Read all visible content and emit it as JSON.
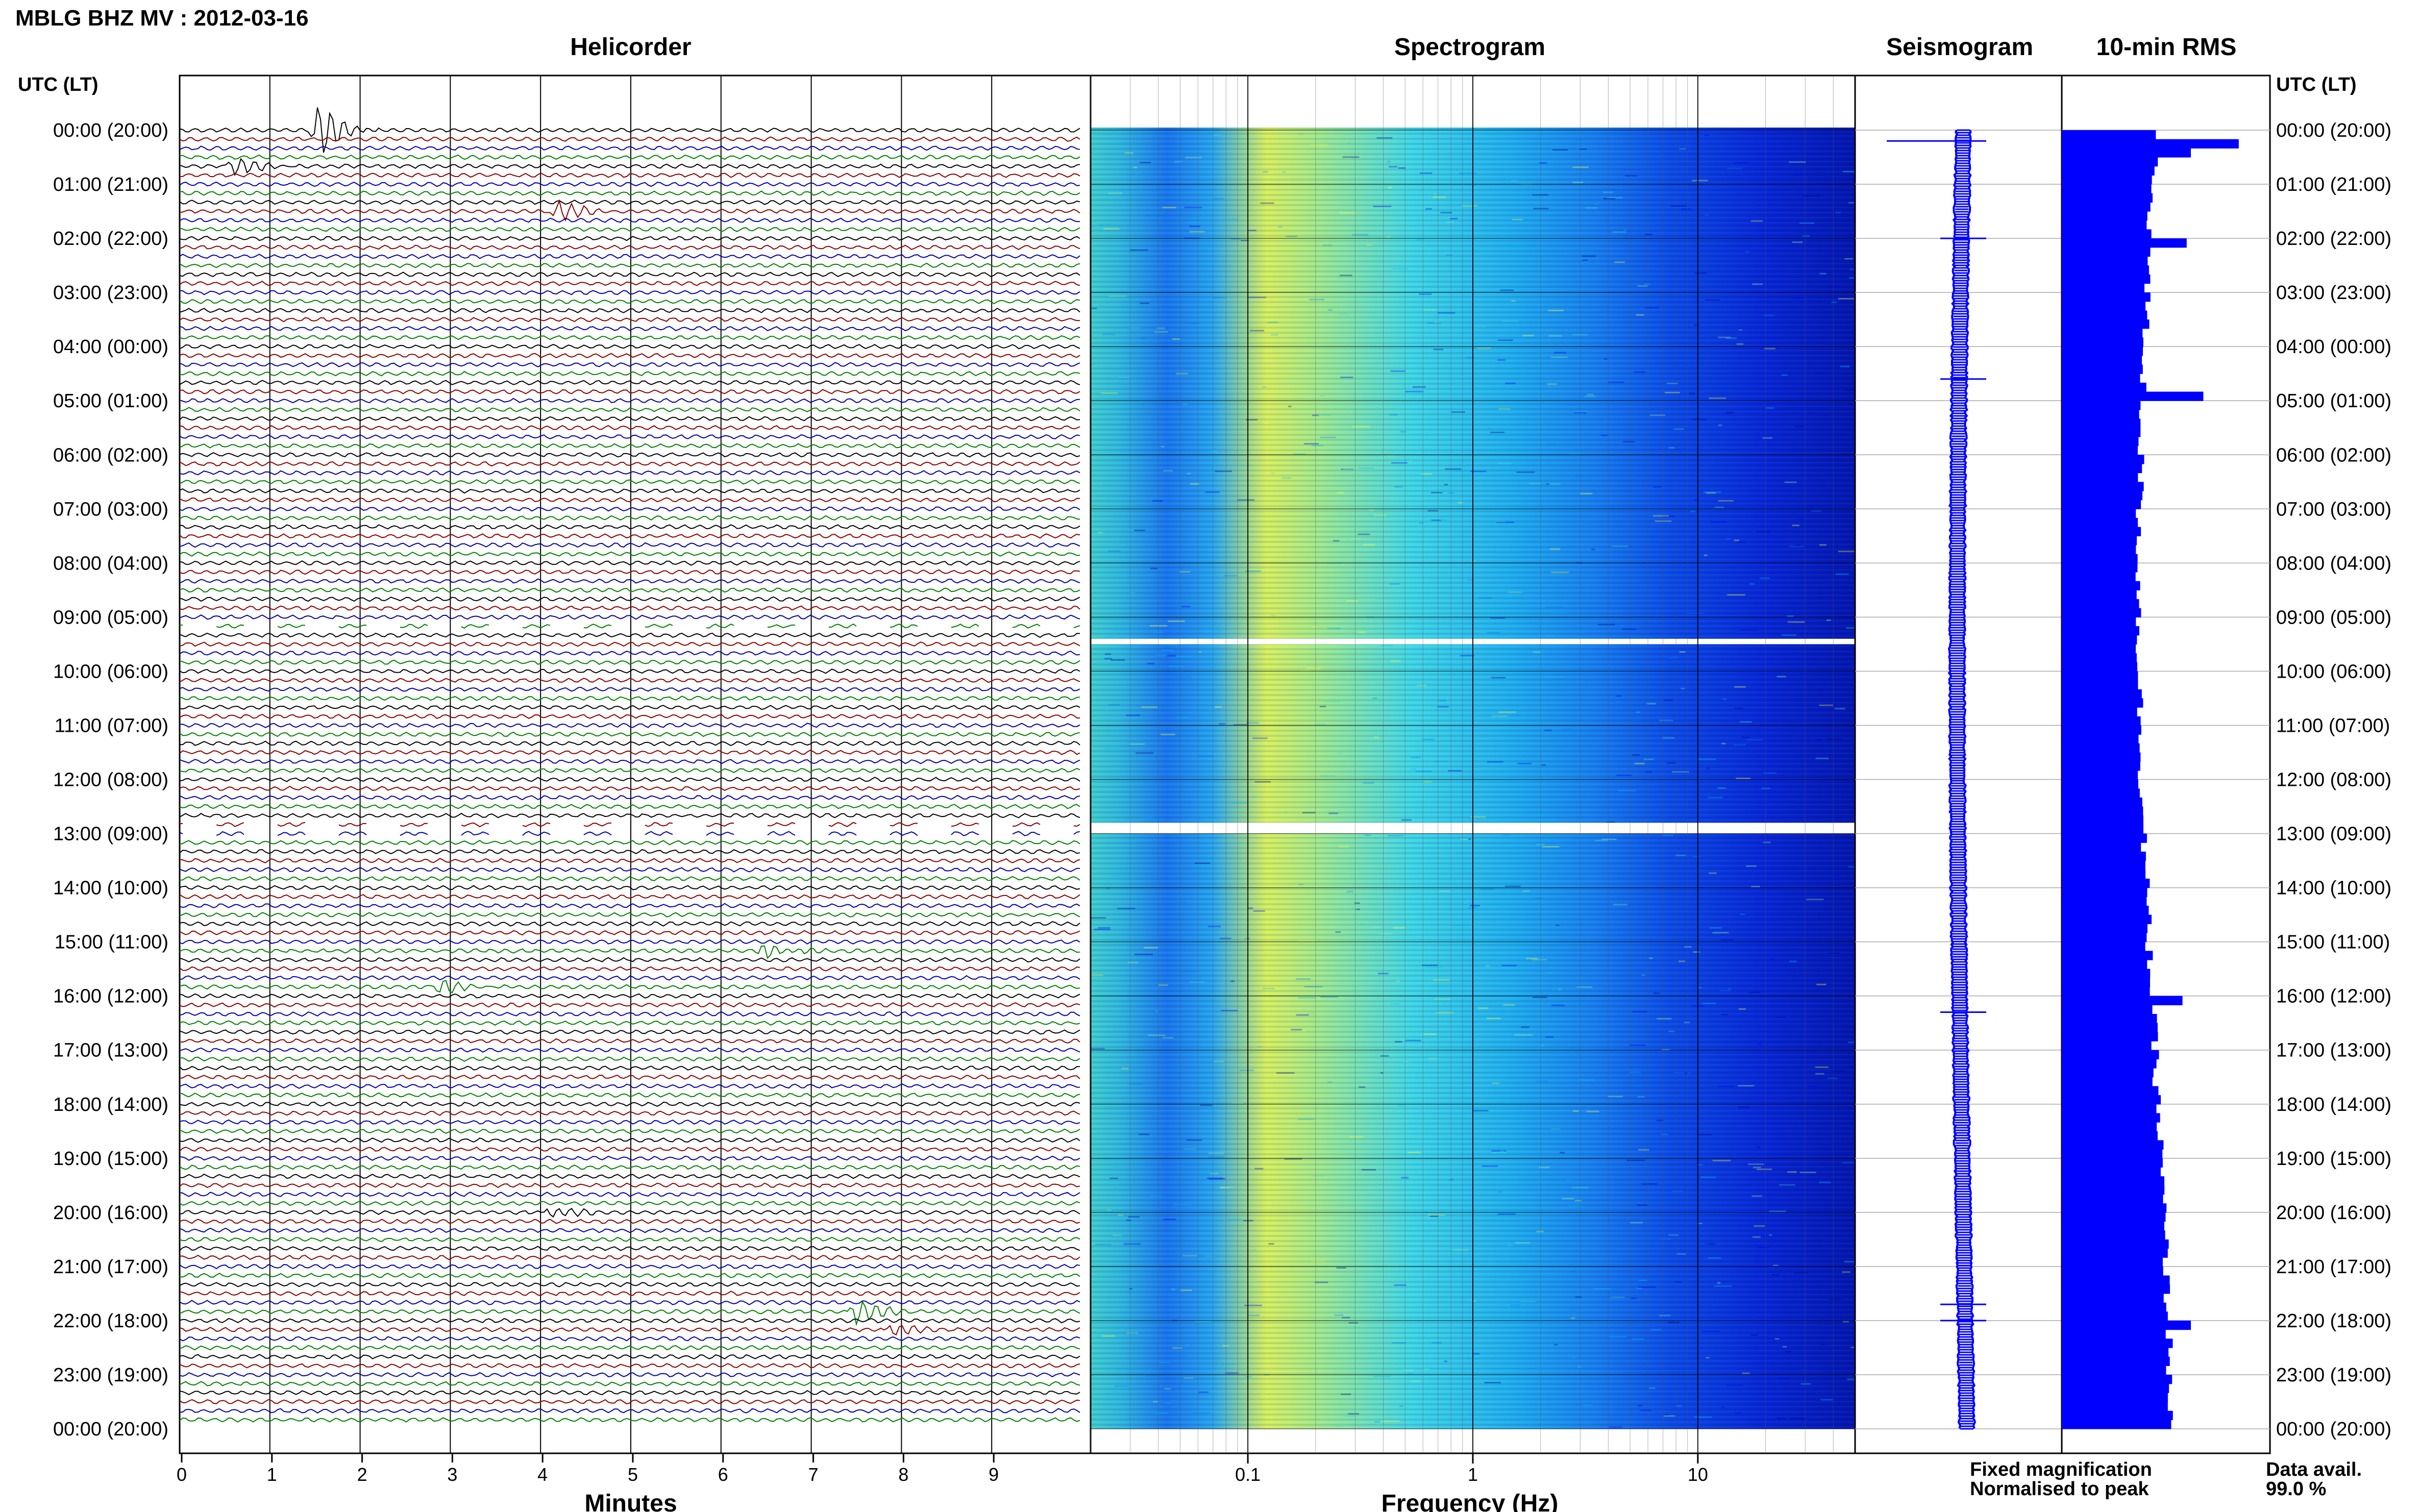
{
  "header": {
    "title": "MBLG BHZ MV : 2012-03-16"
  },
  "panels": {
    "helicorder": "Helicorder",
    "spectrogram": "Spectrogram",
    "seismogram": "Seismogram",
    "rms": "10-min RMS"
  },
  "axis_headers": {
    "left": "UTC (LT)",
    "right": "UTC (LT)"
  },
  "time_labels": [
    "00:00 (20:00)",
    "01:00 (21:00)",
    "02:00 (22:00)",
    "03:00 (23:00)",
    "04:00 (00:00)",
    "05:00 (01:00)",
    "06:00 (02:00)",
    "07:00 (03:00)",
    "08:00 (04:00)",
    "09:00 (05:00)",
    "10:00 (06:00)",
    "11:00 (07:00)",
    "12:00 (08:00)",
    "13:00 (09:00)",
    "14:00 (10:00)",
    "15:00 (11:00)",
    "16:00 (12:00)",
    "17:00 (13:00)",
    "18:00 (14:00)",
    "19:00 (15:00)",
    "20:00 (16:00)",
    "21:00 (17:00)",
    "22:00 (18:00)",
    "23:00 (19:00)",
    "00:00 (20:00)"
  ],
  "legend": {
    "fixed": "Fixed magnification",
    "fixed_color": "#0000ff",
    "normalised": "Normalised to peak",
    "normalised_color": "#ff0000",
    "avail_label": "Data avail.",
    "avail_value": "99.0 %"
  },
  "chart_data": [
    {
      "type": "line",
      "title": "Helicorder",
      "xlabel": "Minutes",
      "ylabel": "UTC (LT)",
      "xlim": [
        0,
        10
      ],
      "x_ticks": [
        "0",
        "1",
        "2",
        "3",
        "4",
        "5",
        "6",
        "7",
        "8",
        "9"
      ],
      "rows_per_hour": 6,
      "minutes_per_row": 10,
      "trace_colors": [
        "#000000",
        "#8b0000",
        "#0000aa",
        "#008000"
      ],
      "events": [
        {
          "row": 0,
          "minute": 1.55,
          "amplitude": 4.0
        },
        {
          "row": 4,
          "minute": 0.6,
          "amplitude": 1.4
        },
        {
          "row": 9,
          "minute": 4.2,
          "amplitude": 1.6
        },
        {
          "row": 91,
          "minute": 6.5,
          "amplitude": 1.3
        },
        {
          "row": 95,
          "minute": 2.9,
          "amplitude": 1.0
        },
        {
          "row": 120,
          "minute": 4.1,
          "amplitude": 1.0
        },
        {
          "row": 131,
          "minute": 7.5,
          "amplitude": 1.9
        },
        {
          "row": 133,
          "minute": 7.9,
          "amplitude": 1.1
        }
      ],
      "gaps": [
        {
          "start_row": 55,
          "end_row": 55
        },
        {
          "start_row": 77,
          "end_row": 78
        }
      ]
    },
    {
      "type": "heatmap",
      "title": "Spectrogram",
      "xlabel": "Frequency (Hz)",
      "x_scale": "log",
      "xlim": [
        0.02,
        50
      ],
      "x_ticks": [
        "0.1",
        "1",
        "10"
      ],
      "colormap": [
        "#00008b",
        "#0000ff",
        "#0080ff",
        "#00c0ff",
        "#40e0d0",
        "#a0f0a0",
        "#ffff40"
      ],
      "gaps": [
        {
          "start_hour": 9.4,
          "end_hour": 9.5
        },
        {
          "start_hour": 12.8,
          "end_hour": 13.0
        }
      ]
    },
    {
      "type": "line",
      "title": "Seismogram",
      "color": "#0000ff",
      "spikes_hour": [
        0.2,
        2.0,
        4.6,
        16.3,
        21.7,
        22.0
      ]
    },
    {
      "type": "bar",
      "title": "10-min RMS",
      "color": "#0000ff",
      "bins_per_hour": 6,
      "baseline_level": 0.45,
      "peaks": [
        {
          "bin": 1,
          "value": 0.85
        },
        {
          "bin": 2,
          "value": 0.62
        },
        {
          "bin": 12,
          "value": 0.6
        },
        {
          "bin": 29,
          "value": 0.68
        },
        {
          "bin": 96,
          "value": 0.58
        },
        {
          "bin": 132,
          "value": 0.62
        }
      ]
    }
  ]
}
